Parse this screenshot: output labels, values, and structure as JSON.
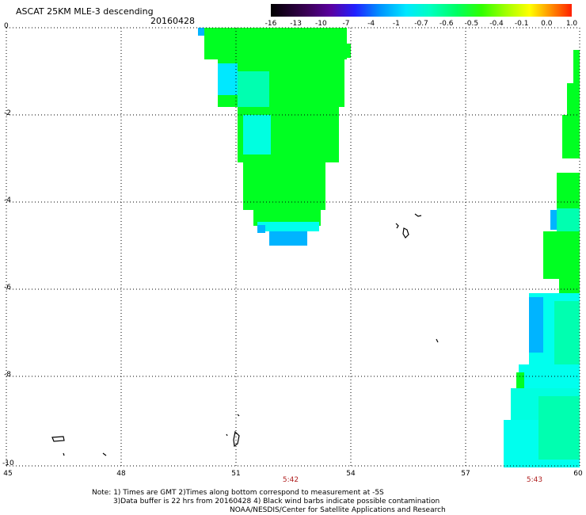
{
  "header": {
    "title": "ASCAT 25KM MLE-3 descending",
    "date": "20160428"
  },
  "colorbar": {
    "labels": [
      "-16",
      "-13",
      "-10",
      "-7",
      "-4",
      "-1",
      "-0.7",
      "-0.6",
      "-0.5",
      "-0.4",
      "-0.1",
      "0.0",
      "1.0"
    ],
    "colors": [
      "#000000",
      "#3a0055",
      "#5a00a0",
      "#2020ff",
      "#0090ff",
      "#00e8ff",
      "#00ffc0",
      "#00ff60",
      "#30ff00",
      "#a0ff00",
      "#ffff00",
      "#ff9000",
      "#ff2000"
    ]
  },
  "axes": {
    "y_ticks": [
      "0",
      "-2",
      "-4",
      "-6",
      "-8",
      "-10"
    ],
    "x_ticks": [
      "45",
      "48",
      "51",
      "54",
      "57",
      "60"
    ],
    "lat_range": [
      -10,
      0
    ],
    "lon_range": [
      45,
      60
    ]
  },
  "times": [
    "5:42",
    "5:43"
  ],
  "notes": {
    "line1": "Note: 1) Times are GMT 2)Times along bottom correspond to measurement at -5S",
    "line2": "3)Data buffer is 22 hrs from 20160428 4) Black wind barbs indicate possible contamination",
    "line3": "NOAA/NESDIS/Center for Satellite Applications and Research"
  },
  "palette": {
    "green": "#00ff22",
    "cyan": "#00ffee",
    "light_blue": "#00b4ff",
    "aqua": "#00ffb0"
  }
}
